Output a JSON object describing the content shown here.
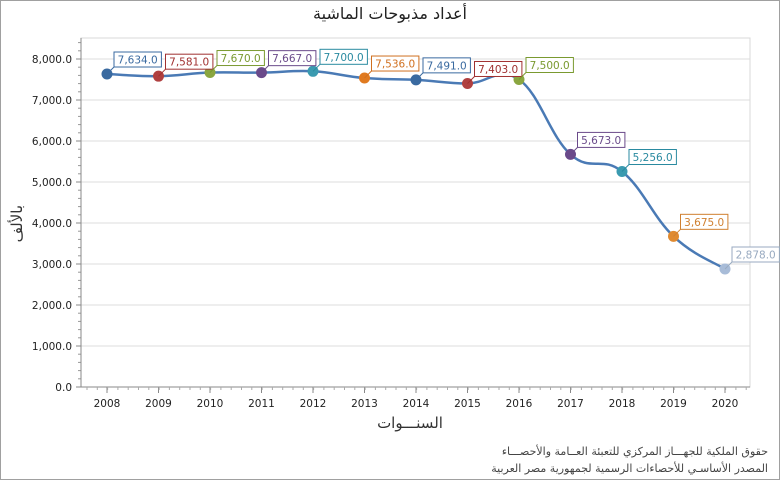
{
  "title": "أعداد مذبوحات الماشية",
  "y_axis_label": "بالألف",
  "x_axis_label": "السنـــوات",
  "footer": {
    "line1": "حقوق الملكية للجهـــاز المركزي للتعبئة العــامة والأحصـــاء",
    "line2": "المصدر الأساسـي للأحصاءات الرسمية لجمهورية مصر العربية"
  },
  "chart_data": {
    "type": "line",
    "title": "أعداد مذبوحات الماشية",
    "xlabel": "السنـــوات",
    "ylabel": "بالألف",
    "categories": [
      "2008",
      "2009",
      "2010",
      "2011",
      "2012",
      "2013",
      "2014",
      "2015",
      "2016",
      "2017",
      "2018",
      "2019",
      "2020"
    ],
    "values": [
      7634.0,
      7581.0,
      7670.0,
      7667.0,
      7700.0,
      7536.0,
      7491.0,
      7403.0,
      7500.0,
      5673.0,
      5256.0,
      3675.0,
      2878.0
    ],
    "data_labels": [
      "7,634.0",
      "7,581.0",
      "7,670.0",
      "7,667.0",
      "7,700.0",
      "7,536.0",
      "7,491.0",
      "7,403.0",
      "7,500.0",
      "5,673.0",
      "5,256.0",
      "3,675.0",
      "2,878.0"
    ],
    "point_colors": [
      "#3a6aa0",
      "#b04040",
      "#8aa640",
      "#6a4a8a",
      "#3a9ab0",
      "#e07a20",
      "#3a6aa0",
      "#b04040",
      "#8aa640",
      "#6a4a8a",
      "#3a9ab0",
      "#e08a30",
      "#a8bcd8"
    ],
    "label_colors": [
      "#3a6aa0",
      "#a03030",
      "#7a9a30",
      "#6a4a8a",
      "#2a8aa0",
      "#d07020",
      "#3a6aa0",
      "#a03030",
      "#7a9a30",
      "#6a4a8a",
      "#2a8aa0",
      "#d08030",
      "#98aac0"
    ],
    "line_color": "#4a7ab5",
    "yticks": [
      "0.0",
      "1,000.0",
      "2,000.0",
      "3,000.0",
      "4,000.0",
      "5,000.0",
      "6,000.0",
      "7,000.0",
      "8,000.0"
    ],
    "ylim": [
      0,
      8400
    ],
    "grid": true,
    "legend": "none"
  }
}
